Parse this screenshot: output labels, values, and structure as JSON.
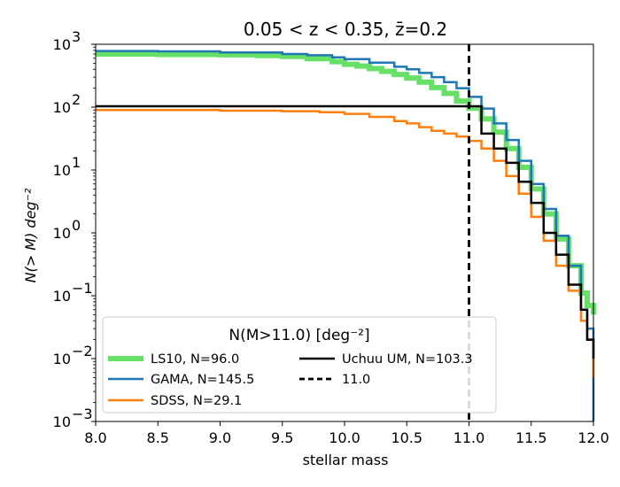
{
  "chart_data": {
    "type": "line",
    "title": "0.05 < z < 0.35, z̄=0.2",
    "xlabel": "stellar mass",
    "ylabel": "N(> M) deg⁻²",
    "xlim": [
      8.0,
      12.0
    ],
    "ylim": [
      0.001,
      1000
    ],
    "yscale": "log",
    "x_ticks": [
      "8.0",
      "8.5",
      "9.0",
      "9.5",
      "10.0",
      "10.5",
      "11.0",
      "11.5",
      "12.0"
    ],
    "y_ticks": [
      {
        "base": "10",
        "exp": "3"
      },
      {
        "base": "10",
        "exp": "2"
      },
      {
        "base": "10",
        "exp": "1"
      },
      {
        "base": "10",
        "exp": "0"
      },
      {
        "base": "10",
        "exp": "−1"
      },
      {
        "base": "10",
        "exp": "−2"
      },
      {
        "base": "10",
        "exp": "−3"
      }
    ],
    "grid": false,
    "legend": {
      "title": "N(M>11.0) [deg⁻²]",
      "placement": "lower-left",
      "entries": [
        "LS10, N=96.0",
        "GAMA, N=145.5",
        "SDSS, N=29.1",
        "Uchuu UM, N=103.3",
        "11.0"
      ]
    },
    "vline": {
      "x": 11.0,
      "label": "11.0",
      "color": "#000000",
      "style": "dashed"
    },
    "series": [
      {
        "name": "LS10, N=96.0",
        "color": "#66e066",
        "style": "step",
        "x": [
          8.0,
          8.5,
          9.0,
          9.3,
          9.5,
          9.7,
          9.9,
          10.0,
          10.1,
          10.2,
          10.3,
          10.4,
          10.5,
          10.6,
          10.7,
          10.8,
          10.9,
          11.0,
          11.1,
          11.2,
          11.3,
          11.4,
          11.5,
          11.6,
          11.7,
          11.8,
          11.9,
          11.95,
          12.0
        ],
        "y": [
          700,
          690,
          680,
          660,
          640,
          590,
          530,
          480,
          450,
          410,
          370,
          330,
          290,
          250,
          205,
          165,
          125,
          96,
          65,
          40,
          22,
          11,
          5.0,
          2.0,
          0.8,
          0.3,
          0.11,
          0.07,
          0.05
        ]
      },
      {
        "name": "GAMA, N=145.5",
        "color": "#1f77b4",
        "style": "step",
        "x": [
          8.0,
          8.5,
          9.0,
          9.5,
          9.7,
          9.9,
          10.0,
          10.2,
          10.4,
          10.5,
          10.6,
          10.7,
          10.8,
          10.9,
          11.0,
          11.1,
          11.2,
          11.3,
          11.4,
          11.5,
          11.6,
          11.7,
          11.8,
          11.9,
          11.95,
          12.0
        ],
        "y": [
          780,
          770,
          740,
          700,
          670,
          620,
          580,
          510,
          440,
          400,
          350,
          300,
          250,
          200,
          145.5,
          95,
          55,
          30,
          14,
          6,
          2.4,
          0.9,
          0.3,
          0.06,
          0.03,
          0.001
        ]
      },
      {
        "name": "SDSS, N=29.1",
        "color": "#ff7f0e",
        "style": "step",
        "x": [
          8.0,
          8.5,
          9.0,
          9.5,
          9.8,
          10.0,
          10.2,
          10.4,
          10.5,
          10.6,
          10.7,
          10.8,
          10.9,
          11.0,
          11.1,
          11.2,
          11.3,
          11.4,
          11.5,
          11.6,
          11.7,
          11.8,
          11.9,
          11.95,
          12.0
        ],
        "y": [
          90,
          90,
          88,
          86,
          83,
          78,
          70,
          60,
          55,
          48,
          42,
          38,
          34,
          29.1,
          22,
          14,
          8,
          4.2,
          1.8,
          0.75,
          0.3,
          0.12,
          0.04,
          0.02,
          0.005
        ]
      },
      {
        "name": "Uchuu UM, N=103.3",
        "color": "#000000",
        "style": "step",
        "x": [
          8.0,
          8.5,
          9.0,
          9.5,
          10.0,
          10.5,
          10.9,
          11.0,
          11.1,
          11.2,
          11.3,
          11.4,
          11.5,
          11.6,
          11.7,
          11.8,
          11.9,
          11.95,
          12.0
        ],
        "y": [
          103.3,
          103.3,
          103.3,
          103.3,
          103.3,
          103.3,
          103.3,
          103.3,
          38,
          22,
          13,
          6.5,
          3.0,
          1.0,
          0.45,
          0.15,
          0.06,
          0.02,
          0.01
        ]
      }
    ]
  }
}
